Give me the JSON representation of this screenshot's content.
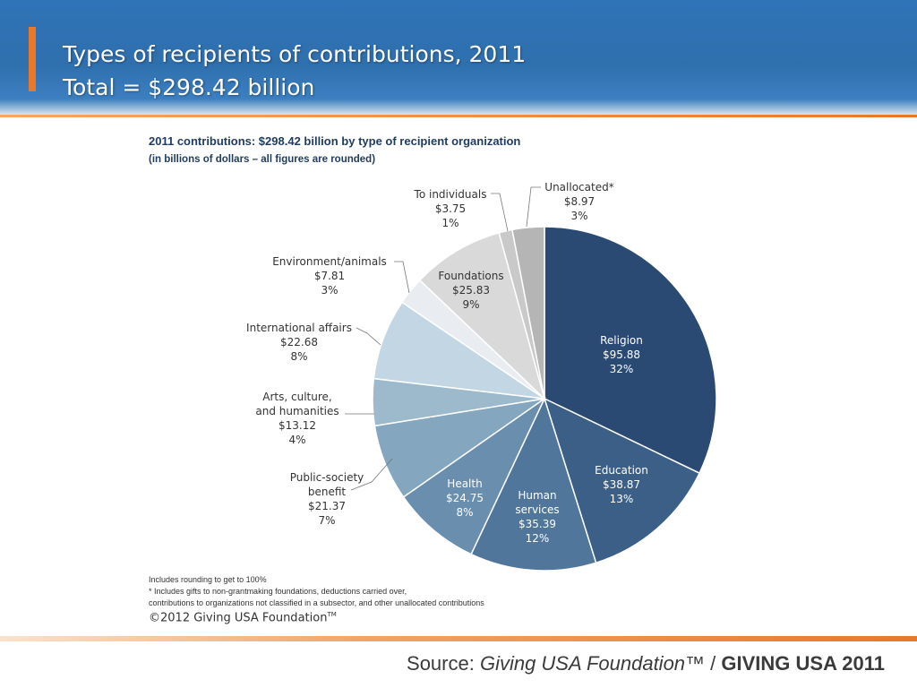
{
  "slide": {
    "title_line1": "Types of recipients of contributions, 2011",
    "title_line2": "Total = $298.42 billion"
  },
  "chart_heading": {
    "line1": "2011 contributions: $298.42 billion by type of recipient organization",
    "line2": "(in billions of dollars – all figures are rounded)"
  },
  "chart_data": {
    "type": "pie",
    "title": "2011 contributions: $298.42 billion by type of recipient organization",
    "subtitle": "(in billions of dollars – all figures are rounded)",
    "slices": [
      {
        "label": [
          "Religion"
        ],
        "value": 95.88,
        "value_label": "$95.88",
        "percent": "32%",
        "color": "#2b4a73",
        "text_color": "#ffffff"
      },
      {
        "label": [
          "Education"
        ],
        "value": 38.87,
        "value_label": "$38.87",
        "percent": "13%",
        "color": "#3b5f86",
        "text_color": "#ffffff"
      },
      {
        "label": [
          "Human",
          "services"
        ],
        "value": 35.39,
        "value_label": "$35.39",
        "percent": "12%",
        "color": "#51769b",
        "text_color": "#ffffff"
      },
      {
        "label": [
          "Health"
        ],
        "value": 24.75,
        "value_label": "$24.75",
        "percent": "8%",
        "color": "#6a8eae",
        "text_color": "#ffffff"
      },
      {
        "label": [
          "Public-society",
          "benefit"
        ],
        "value": 21.37,
        "value_label": "$21.37",
        "percent": "7%",
        "color": "#84a6bf",
        "text_color": "#333333"
      },
      {
        "label": [
          "Arts, culture,",
          "and humanities"
        ],
        "value": 13.12,
        "value_label": "$13.12",
        "percent": "4%",
        "color": "#9dbacd",
        "text_color": "#333333"
      },
      {
        "label": [
          "International affairs"
        ],
        "value": 22.68,
        "value_label": "$22.68",
        "percent": "8%",
        "color": "#c3d6e3",
        "text_color": "#333333"
      },
      {
        "label": [
          "Environment/animals"
        ],
        "value": 7.81,
        "value_label": "$7.81",
        "percent": "3%",
        "color": "#e9edf1",
        "text_color": "#333333"
      },
      {
        "label": [
          "Foundations"
        ],
        "value": 25.83,
        "value_label": "$25.83",
        "percent": "9%",
        "color": "#d9d9d9",
        "text_color": "#333333"
      },
      {
        "label": [
          "To individuals"
        ],
        "value": 3.75,
        "value_label": "$3.75",
        "percent": "1%",
        "color": "#c9c9c9",
        "text_color": "#333333"
      },
      {
        "label": [
          "Unallocated*"
        ],
        "value": 8.97,
        "value_label": "$8.97",
        "percent": "3%",
        "color": "#b5b5b5",
        "text_color": "#333333"
      }
    ]
  },
  "footnotes": {
    "line1": "Includes rounding to get to 100%",
    "line2": "* Includes gifts to non-grantmaking foundations, deductions carried over,",
    "line3": "contributions to organizations not classified in a subsector, and other unallocated contributions"
  },
  "copyright": {
    "text": "©2012 Giving USA Foundation",
    "tm": "TM"
  },
  "source": {
    "prefix": "Source: ",
    "publisher": "Giving USA Foundation™",
    "separator": " / ",
    "publication": "GIVING USA 2011"
  }
}
